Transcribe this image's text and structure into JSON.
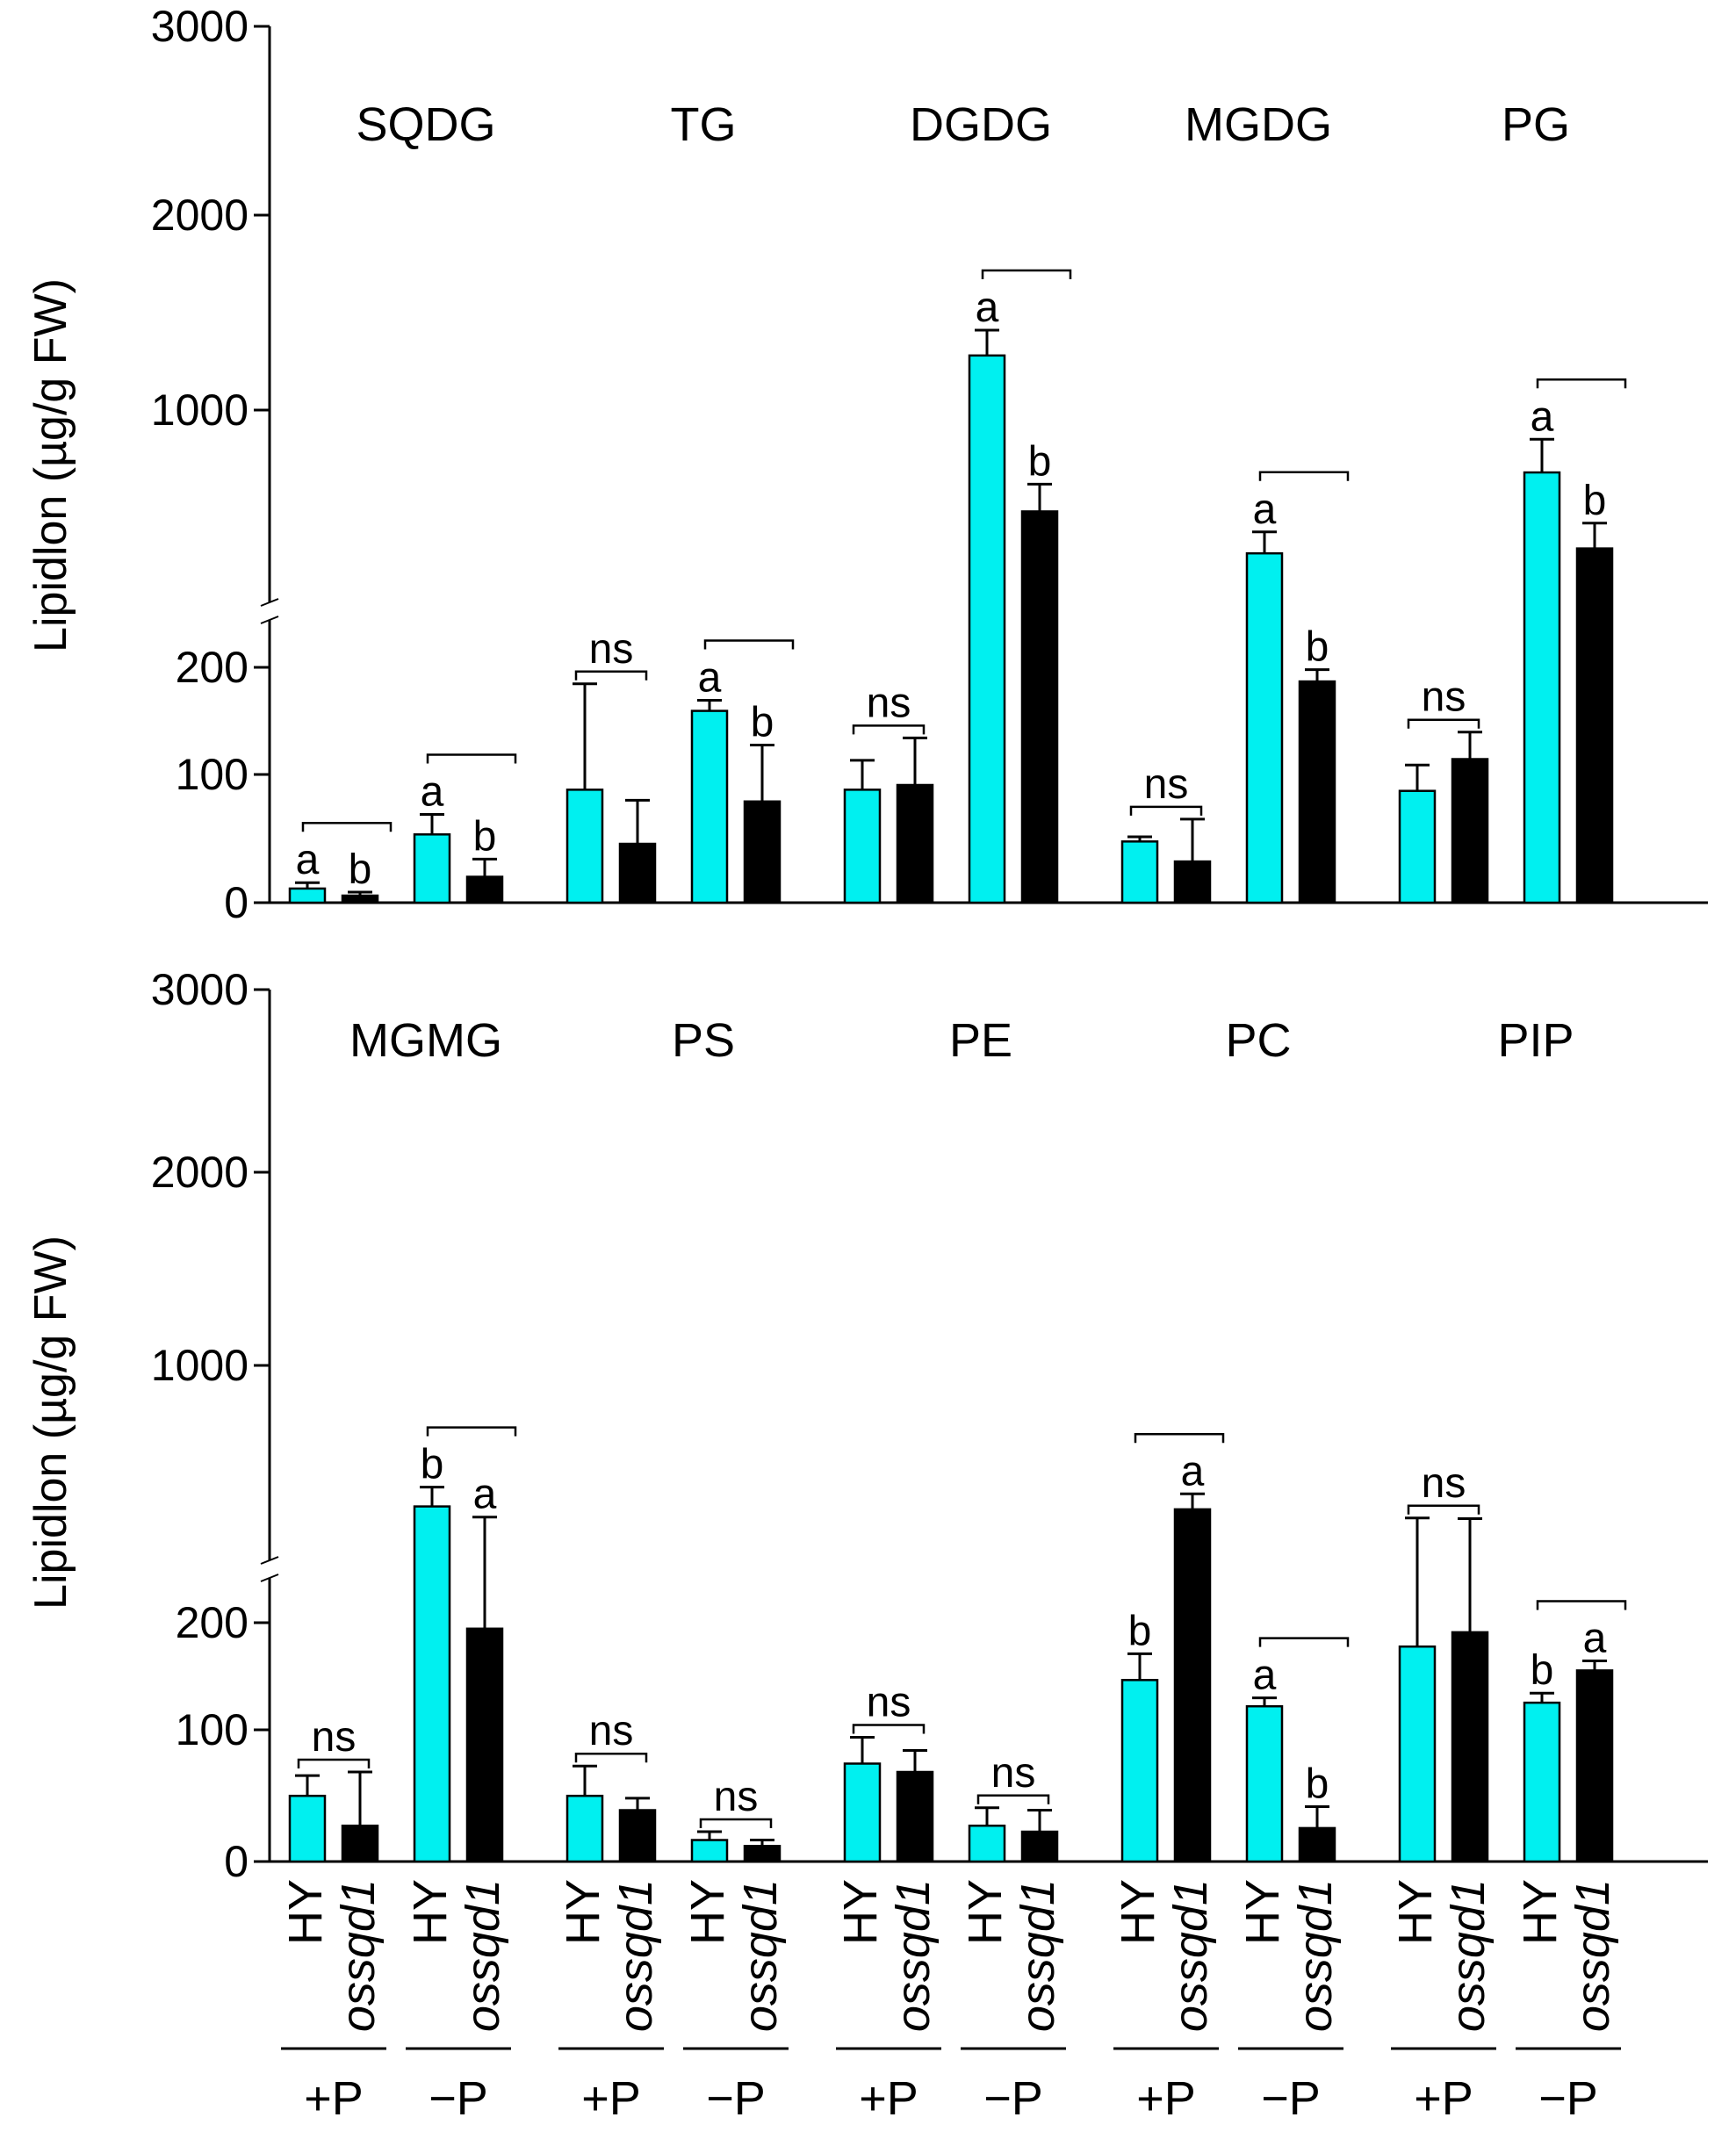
{
  "colors": {
    "hy": "#00f0f0",
    "ossqd1": "#000000",
    "axis": "#000000"
  },
  "chart_data": [
    {
      "type": "bar",
      "panel": "top",
      "ylabel": "Lipidlon (µg/g FW)",
      "yticks": [
        "0",
        "100",
        "200",
        "1000",
        "2000",
        "3000"
      ],
      "ylim": [
        0,
        3000
      ],
      "axis_break": "between 200 and 1000",
      "groups": [
        {
          "class": "SQDG",
          "conditions": [
            {
              "treatment": "+P",
              "hy": 12,
              "hy_err": 5,
              "ossqd1": 6,
              "ossqd1_err": 3,
              "sig": "bracket",
              "hy_letter": "a",
              "ossqd1_letter": "b"
            },
            {
              "treatment": "−P",
              "hy": 58,
              "hy_err": 17,
              "ossqd1": 22,
              "ossqd1_err": 15,
              "sig": "bracket",
              "hy_letter": "a",
              "ossqd1_letter": "b"
            }
          ]
        },
        {
          "class": "TG",
          "conditions": [
            {
              "treatment": "+P",
              "hy": 96,
              "hy_err": 90,
              "ossqd1": 50,
              "ossqd1_err": 37,
              "sig": "ns",
              "hy_letter": "",
              "ossqd1_letter": ""
            },
            {
              "treatment": "−P",
              "hy": 163,
              "hy_err": 9,
              "ossqd1": 86,
              "ossqd1_err": 48,
              "sig": "bracket",
              "hy_letter": "a",
              "ossqd1_letter": "b"
            }
          ]
        },
        {
          "class": "DGDG",
          "conditions": [
            {
              "treatment": "+P",
              "hy": 96,
              "hy_err": 25,
              "ossqd1": 100,
              "ossqd1_err": 40,
              "sig": "ns",
              "hy_letter": "",
              "ossqd1_letter": ""
            },
            {
              "treatment": "−P",
              "hy": 1280,
              "hy_err": 130,
              "ossqd1": 480,
              "ossqd1_err": 140,
              "sig": "bracket",
              "hy_letter": "a",
              "ossqd1_letter": "b"
            }
          ]
        },
        {
          "class": "MGDG",
          "conditions": [
            {
              "treatment": "+P",
              "hy": 52,
              "hy_err": 4,
              "ossqd1": 35,
              "ossqd1_err": 36,
              "sig": "ns",
              "hy_letter": "",
              "ossqd1_letter": ""
            },
            {
              "treatment": "−P",
              "hy": 265,
              "hy_err": 110,
              "ossqd1": 188,
              "ossqd1_err": 10,
              "sig": "bracket",
              "hy_letter": "a",
              "ossqd1_letter": "b"
            }
          ]
        },
        {
          "class": "PG",
          "conditions": [
            {
              "treatment": "+P",
              "hy": 95,
              "hy_err": 22,
              "ossqd1": 122,
              "ossqd1_err": 23,
              "sig": "ns",
              "hy_letter": "",
              "ossqd1_letter": ""
            },
            {
              "treatment": "−P",
              "hy": 680,
              "hy_err": 170,
              "ossqd1": 290,
              "ossqd1_err": 130,
              "sig": "bracket",
              "hy_letter": "a",
              "ossqd1_letter": "b"
            }
          ]
        }
      ]
    },
    {
      "type": "bar",
      "panel": "bottom",
      "ylabel": "Lipidlon (µg/g FW)",
      "yticks": [
        "0",
        "100",
        "200",
        "1000",
        "2000",
        "3000"
      ],
      "ylim": [
        0,
        3000
      ],
      "axis_break": "between 200 and 1000",
      "groups": [
        {
          "class": "MGMG",
          "conditions": [
            {
              "treatment": "+P",
              "hy": 55,
              "hy_err": 17,
              "ossqd1": 30,
              "ossqd1_err": 45,
              "sig": "ns",
              "hy_letter": "",
              "ossqd1_letter": ""
            },
            {
              "treatment": "−P",
              "hy": 270,
              "hy_err": 100,
              "ossqd1": 195,
              "ossqd1_err": 20,
              "sig": "bracket",
              "hy_letter": "b",
              "ossqd1_letter": "a"
            }
          ]
        },
        {
          "class": "PS",
          "conditions": [
            {
              "treatment": "+P",
              "hy": 55,
              "hy_err": 25,
              "ossqd1": 43,
              "ossqd1_err": 10,
              "sig": "ns",
              "hy_letter": "",
              "ossqd1_letter": ""
            },
            {
              "treatment": "−P",
              "hy": 18,
              "hy_err": 7,
              "ossqd1": 13,
              "ossqd1_err": 5,
              "sig": "ns",
              "hy_letter": "",
              "ossqd1_letter": ""
            }
          ]
        },
        {
          "class": "PE",
          "conditions": [
            {
              "treatment": "+P",
              "hy": 82,
              "hy_err": 22,
              "ossqd1": 75,
              "ossqd1_err": 18,
              "sig": "ns",
              "hy_letter": "",
              "ossqd1_letter": ""
            },
            {
              "treatment": "−P",
              "hy": 30,
              "hy_err": 15,
              "ossqd1": 25,
              "ossqd1_err": 18,
              "sig": "ns",
              "hy_letter": "",
              "ossqd1_letter": ""
            }
          ]
        },
        {
          "class": "PC",
          "conditions": [
            {
              "treatment": "+P",
              "hy": 152,
              "hy_err": 22,
              "ossqd1": 255,
              "ossqd1_err": 80,
              "sig": "bracket",
              "hy_letter": "b",
              "ossqd1_letter": "a"
            },
            {
              "treatment": "−P",
              "hy": 130,
              "hy_err": 7,
              "ossqd1": 28,
              "ossqd1_err": 18,
              "sig": "bracket",
              "hy_letter": "a",
              "ossqd1_letter": "b"
            }
          ]
        },
        {
          "class": "PIP",
          "conditions": [
            {
              "treatment": "+P",
              "hy": 180,
              "hy_err": 30,
              "ossqd1": 192,
              "ossqd1_err": 15,
              "sig": "ns",
              "hy_letter": "",
              "ossqd1_letter": ""
            },
            {
              "treatment": "−P",
              "hy": 133,
              "hy_err": 8,
              "ossqd1": 160,
              "ossqd1_err": 8,
              "sig": "bracket",
              "hy_letter": "b",
              "ossqd1_letter": "a"
            }
          ]
        }
      ]
    }
  ],
  "x_labels": {
    "genotypes": [
      "HY",
      "ossqd1"
    ],
    "treatments": [
      "+P",
      "−P",
      "+P",
      "−P",
      "+P",
      "−P",
      "+P",
      "−P",
      "+P",
      "−P"
    ]
  }
}
